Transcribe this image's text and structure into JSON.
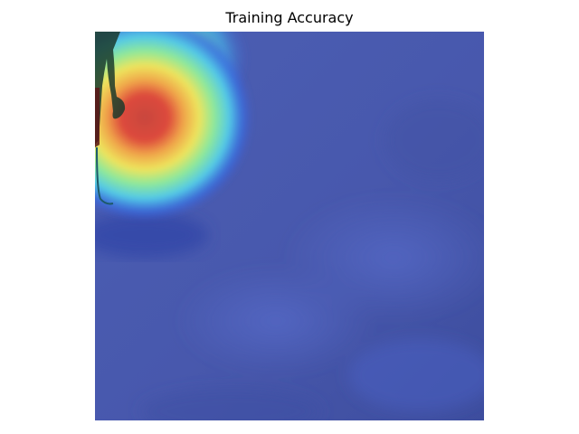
{
  "figure": {
    "title": "Training Accuracy"
  },
  "image": {
    "content": "heatmap-overlay-photo",
    "colormap": "jet",
    "colors": {
      "background_blue": "#4a5cb0",
      "hot_red": "#d83a3a",
      "warm_yellow": "#f2e65a",
      "mid_green": "#7ce8a0",
      "cool_cyan": "#4ec7e6",
      "silhouette": "#1b3a2c"
    }
  }
}
